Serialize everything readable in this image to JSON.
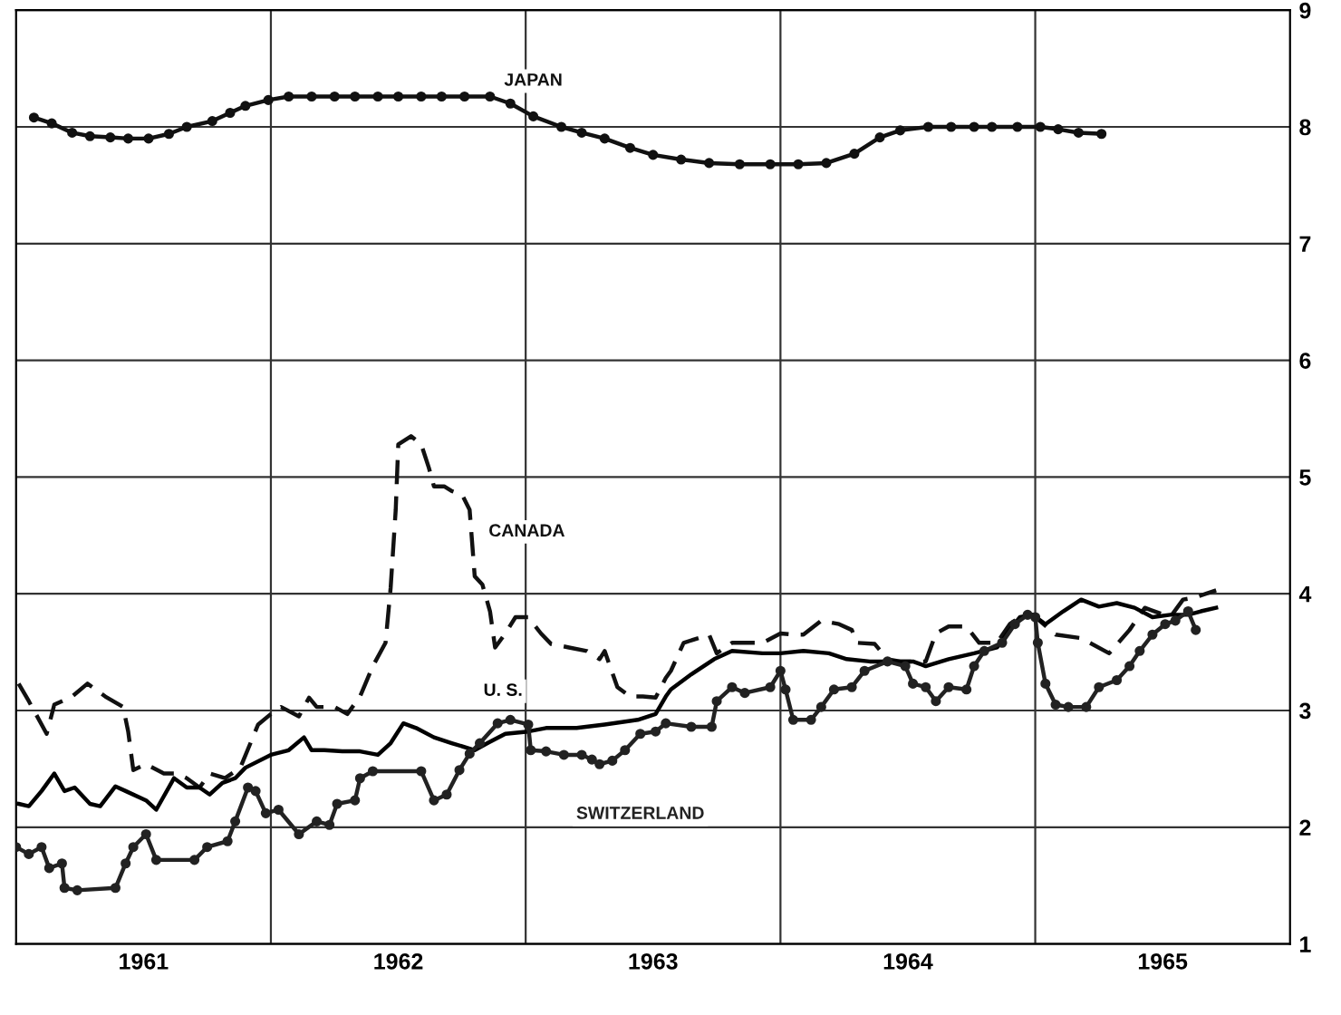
{
  "chart_data": {
    "type": "line",
    "xlim": [
      1961,
      1966
    ],
    "ylim": [
      1,
      9
    ],
    "xticks": [
      {
        "value": 1961.5,
        "label": "1961"
      },
      {
        "value": 1962,
        "label": null
      },
      {
        "value": 1962.5,
        "label": "1962"
      },
      {
        "value": 1963,
        "label": null
      },
      {
        "value": 1963.5,
        "label": "1963"
      },
      {
        "value": 1964,
        "label": null
      },
      {
        "value": 1964.5,
        "label": "1964"
      },
      {
        "value": 1965,
        "label": null
      },
      {
        "value": 1965.5,
        "label": "1965"
      }
    ],
    "yticks": [
      1,
      2,
      3,
      4,
      5,
      6,
      7,
      8,
      9
    ],
    "grid": true,
    "legend": false,
    "series": [
      {
        "name": "JAPAN",
        "color": "#111111",
        "marker": "circle",
        "line_style": "solid",
        "x": [
          1961.07,
          1961.14,
          1961.22,
          1961.29,
          1961.37,
          1961.44,
          1961.52,
          1961.6,
          1961.67,
          1961.77,
          1961.84,
          1961.9,
          1961.99,
          1962.07,
          1962.16,
          1962.25,
          1962.33,
          1962.42,
          1962.5,
          1962.59,
          1962.67,
          1962.76,
          1962.86,
          1962.94,
          1963.03,
          1963.14,
          1963.22,
          1963.31,
          1963.41,
          1963.5,
          1963.61,
          1963.72,
          1963.84,
          1963.96,
          1964.07,
          1964.18,
          1964.29,
          1964.39,
          1964.47,
          1964.58,
          1964.67,
          1964.76,
          1964.83,
          1964.93,
          1965.02,
          1965.09,
          1965.17,
          1965.26
        ],
        "values": [
          8.08,
          8.03,
          7.95,
          7.92,
          7.91,
          7.9,
          7.9,
          7.94,
          8.0,
          8.05,
          8.12,
          8.18,
          8.23,
          8.26,
          8.26,
          8.26,
          8.26,
          8.26,
          8.26,
          8.26,
          8.26,
          8.26,
          8.26,
          8.2,
          8.09,
          8.0,
          7.95,
          7.9,
          7.82,
          7.76,
          7.72,
          7.69,
          7.68,
          7.68,
          7.68,
          7.69,
          7.77,
          7.91,
          7.97,
          8.0,
          8.0,
          8.0,
          8.0,
          8.0,
          8.0,
          7.98,
          7.95,
          7.94
        ]
      },
      {
        "name": "CANADA",
        "color": "#111111",
        "marker": "none",
        "line_style": "dashed",
        "x": [
          1961.01,
          1961.05,
          1961.12,
          1961.15,
          1961.22,
          1961.28,
          1961.35,
          1961.42,
          1961.44,
          1961.46,
          1961.51,
          1961.58,
          1961.63,
          1961.67,
          1961.72,
          1961.76,
          1961.82,
          1961.88,
          1961.95,
          1962.0,
          1962.04,
          1962.11,
          1962.15,
          1962.18,
          1962.25,
          1962.3,
          1962.35,
          1962.4,
          1962.45,
          1962.47,
          1962.49,
          1962.5,
          1962.55,
          1962.59,
          1962.62,
          1962.64,
          1962.68,
          1962.71,
          1962.75,
          1962.78,
          1962.8,
          1962.83,
          1962.86,
          1962.88,
          1962.92,
          1962.96,
          1963.01,
          1963.06,
          1963.1,
          1963.17,
          1963.24,
          1963.29,
          1963.31,
          1963.36,
          1963.41,
          1963.46,
          1963.51,
          1963.55,
          1963.57,
          1963.62,
          1963.72,
          1963.75,
          1963.81,
          1963.93,
          1964.0,
          1964.05,
          1964.09,
          1964.16,
          1964.23,
          1964.28,
          1964.3,
          1964.37,
          1964.42,
          1964.47,
          1964.57,
          1964.61,
          1964.66,
          1964.73,
          1964.78,
          1964.85,
          1964.9,
          1964.94,
          1964.99,
          1965.08,
          1965.18,
          1965.29,
          1965.37,
          1965.43,
          1965.53,
          1965.58,
          1965.63,
          1965.67,
          1965.71
        ],
        "values": [
          3.23,
          3.08,
          2.8,
          3.05,
          3.12,
          3.23,
          3.12,
          3.03,
          2.82,
          2.49,
          2.54,
          2.46,
          2.46,
          2.42,
          2.34,
          2.46,
          2.42,
          2.51,
          2.88,
          2.97,
          3.03,
          2.95,
          3.11,
          3.03,
          3.03,
          2.97,
          3.12,
          3.38,
          3.58,
          4.05,
          4.72,
          5.28,
          5.35,
          5.28,
          5.08,
          4.92,
          4.92,
          4.88,
          4.85,
          4.72,
          4.15,
          4.08,
          3.85,
          3.54,
          3.66,
          3.8,
          3.8,
          3.66,
          3.57,
          3.54,
          3.51,
          3.44,
          3.51,
          3.2,
          3.12,
          3.12,
          3.11,
          3.28,
          3.34,
          3.58,
          3.65,
          3.49,
          3.58,
          3.58,
          3.66,
          3.65,
          3.65,
          3.77,
          3.74,
          3.69,
          3.58,
          3.57,
          3.44,
          3.42,
          3.42,
          3.66,
          3.72,
          3.72,
          3.58,
          3.58,
          3.74,
          3.8,
          3.82,
          3.65,
          3.62,
          3.49,
          3.69,
          3.88,
          3.8,
          3.95,
          3.97,
          4.0,
          4.03
        ]
      },
      {
        "name": "U. S.",
        "color": "#000000",
        "marker": "none",
        "line_style": "solid",
        "x": [
          1961.01,
          1961.05,
          1961.1,
          1961.15,
          1961.19,
          1961.23,
          1961.29,
          1961.33,
          1961.39,
          1961.43,
          1961.51,
          1961.55,
          1961.62,
          1961.67,
          1961.72,
          1961.76,
          1961.81,
          1961.86,
          1961.9,
          1962.0,
          1962.07,
          1962.13,
          1962.16,
          1962.21,
          1962.28,
          1962.35,
          1962.42,
          1962.47,
          1962.52,
          1962.57,
          1962.64,
          1962.71,
          1962.8,
          1962.85,
          1962.92,
          1963.01,
          1963.08,
          1963.2,
          1963.31,
          1963.44,
          1963.51,
          1963.55,
          1963.57,
          1963.65,
          1963.74,
          1963.81,
          1963.93,
          1964.0,
          1964.09,
          1964.19,
          1964.26,
          1964.35,
          1964.52,
          1964.57,
          1964.66,
          1964.76,
          1964.85,
          1964.9,
          1964.94,
          1964.99,
          1965.04,
          1965.11,
          1965.18,
          1965.25,
          1965.32,
          1965.39,
          1965.46,
          1965.53,
          1965.6,
          1965.65,
          1965.71
        ],
        "values": [
          2.2,
          2.18,
          2.31,
          2.46,
          2.31,
          2.34,
          2.2,
          2.18,
          2.35,
          2.31,
          2.23,
          2.15,
          2.42,
          2.34,
          2.34,
          2.28,
          2.38,
          2.42,
          2.51,
          2.62,
          2.66,
          2.77,
          2.66,
          2.66,
          2.65,
          2.65,
          2.62,
          2.72,
          2.89,
          2.85,
          2.77,
          2.72,
          2.66,
          2.72,
          2.8,
          2.82,
          2.85,
          2.85,
          2.88,
          2.92,
          2.97,
          3.12,
          3.18,
          3.31,
          3.44,
          3.51,
          3.49,
          3.49,
          3.51,
          3.49,
          3.44,
          3.42,
          3.42,
          3.38,
          3.44,
          3.49,
          3.54,
          3.69,
          3.8,
          3.82,
          3.74,
          3.85,
          3.95,
          3.89,
          3.92,
          3.88,
          3.8,
          3.82,
          3.82,
          3.85,
          3.88
        ]
      },
      {
        "name": "SWITZERLAND",
        "color": "#222222",
        "marker": "circle",
        "line_style": "solid",
        "x": [
          1961.0,
          1961.05,
          1961.1,
          1961.13,
          1961.18,
          1961.19,
          1961.24,
          1961.39,
          1961.43,
          1961.46,
          1961.51,
          1961.55,
          1961.7,
          1961.75,
          1961.83,
          1961.86,
          1961.91,
          1961.94,
          1961.98,
          1962.03,
          1962.11,
          1962.18,
          1962.23,
          1962.26,
          1962.33,
          1962.35,
          1962.4,
          1962.59,
          1962.64,
          1962.69,
          1962.74,
          1962.78,
          1962.82,
          1962.89,
          1962.94,
          1963.01,
          1963.02,
          1963.08,
          1963.15,
          1963.22,
          1963.26,
          1963.29,
          1963.34,
          1963.39,
          1963.45,
          1963.51,
          1963.55,
          1963.65,
          1963.73,
          1963.75,
          1963.81,
          1963.86,
          1963.96,
          1964.0,
          1964.02,
          1964.05,
          1964.12,
          1964.16,
          1964.21,
          1964.28,
          1964.33,
          1964.42,
          1964.49,
          1964.52,
          1964.57,
          1964.61,
          1964.66,
          1964.73,
          1964.76,
          1964.8,
          1964.87,
          1964.92,
          1964.97,
          1965.0,
          1965.01,
          1965.04,
          1965.08,
          1965.13,
          1965.2,
          1965.25,
          1965.32,
          1965.37,
          1965.41,
          1965.46,
          1965.51,
          1965.55,
          1965.6,
          1965.63
        ],
        "values": [
          1.83,
          1.77,
          1.83,
          1.65,
          1.69,
          1.48,
          1.46,
          1.48,
          1.69,
          1.83,
          1.94,
          1.72,
          1.72,
          1.83,
          1.88,
          2.05,
          2.34,
          2.31,
          2.12,
          2.15,
          1.94,
          2.05,
          2.02,
          2.2,
          2.23,
          2.42,
          2.48,
          2.48,
          2.23,
          2.28,
          2.49,
          2.63,
          2.72,
          2.89,
          2.92,
          2.88,
          2.66,
          2.65,
          2.62,
          2.62,
          2.58,
          2.54,
          2.57,
          2.66,
          2.8,
          2.82,
          2.89,
          2.86,
          2.86,
          3.08,
          3.2,
          3.15,
          3.2,
          3.34,
          3.18,
          2.92,
          2.92,
          3.03,
          3.18,
          3.2,
          3.34,
          3.42,
          3.38,
          3.23,
          3.2,
          3.08,
          3.2,
          3.18,
          3.38,
          3.51,
          3.58,
          3.74,
          3.82,
          3.8,
          3.58,
          3.23,
          3.05,
          3.03,
          3.03,
          3.2,
          3.26,
          3.38,
          3.51,
          3.65,
          3.74,
          3.77,
          3.85,
          3.69
        ]
      }
    ]
  }
}
